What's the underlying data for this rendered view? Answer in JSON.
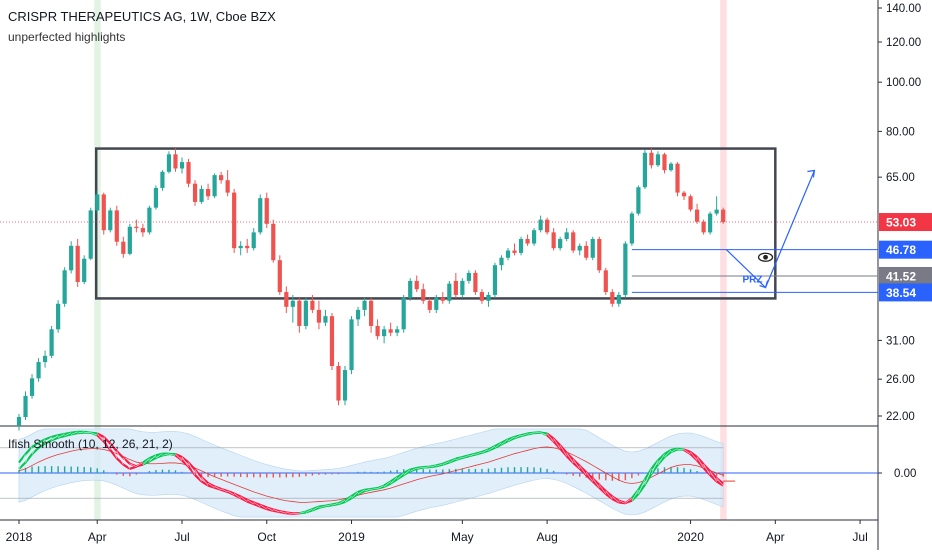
{
  "header": {
    "title": "CRISPR THERAPEUTICS AG, 1W, Cboe BZX",
    "subtitle": "unperfected highlights"
  },
  "indicator": {
    "label": "Ifish Smooth (10, 12, 26, 21, 2)",
    "zero_label": "0.00"
  },
  "colors": {
    "up": "#26a69a",
    "down": "#ef5350",
    "box": "#434651",
    "blue": "#2962ff",
    "price_tag": "#f23645",
    "grey_tag": "#787b86",
    "band_fill": "#d6e9f8",
    "green_line": "#00c853",
    "red_line": "#ff1744"
  },
  "chart_data": [
    {
      "type": "candlestick",
      "title": "CRISPR THERAPEUTICS AG, 1W, Cboe BZX",
      "y_scale": "log",
      "y_ticks": [
        "140.00",
        "120.00",
        "100.00",
        "80.00",
        "65.00",
        "53.03",
        "46.78",
        "41.52",
        "38.54",
        "31.00",
        "26.00",
        "22.00"
      ],
      "y_tick_values": [
        140,
        120,
        100,
        80,
        65,
        31,
        26,
        22
      ],
      "x_ticks": [
        "2018",
        "Apr",
        "Jul",
        "Oct",
        "2019",
        "May",
        "Aug",
        "2020",
        "Apr",
        "Jul"
      ],
      "x_tick_weeks": [
        0,
        12,
        25,
        38,
        51,
        68,
        81,
        103,
        116,
        129
      ],
      "x_start": "2018-01-01",
      "last_price": "53.03",
      "levels": [
        {
          "label": "46.78",
          "value": 46.78,
          "style": "blue"
        },
        {
          "label": "41.52",
          "value": 41.52,
          "style": "grey"
        },
        {
          "label": "38.54",
          "value": 38.54,
          "style": "blue"
        }
      ],
      "annotations": {
        "prz_label": "PRZ",
        "eye_marker": "eye-icon",
        "range_box": {
          "from_week": 10,
          "to_week": 116,
          "top": 74,
          "bottom": 37.5
        }
      },
      "highlights": [
        {
          "week": 12,
          "color": "green"
        },
        {
          "week": 108,
          "color": "red"
        }
      ],
      "candles": [
        [
          21.1,
          22.2,
          20.6,
          21.9
        ],
        [
          21.9,
          24.6,
          21.6,
          24.1
        ],
        [
          24.1,
          26.6,
          23.8,
          26.1
        ],
        [
          26.1,
          28.6,
          25.7,
          28.1
        ],
        [
          28.1,
          29.6,
          27.4,
          28.9
        ],
        [
          28.9,
          33.1,
          28.6,
          32.6
        ],
        [
          32.6,
          37.2,
          32.1,
          36.6
        ],
        [
          36.6,
          43.2,
          36.1,
          42.6
        ],
        [
          42.6,
          48.6,
          42.0,
          47.6
        ],
        [
          47.6,
          49.1,
          39.5,
          40.4
        ],
        [
          40.4,
          45.6,
          40.0,
          44.9
        ],
        [
          44.9,
          56.6,
          44.6,
          55.9
        ],
        [
          55.9,
          61.2,
          55.1,
          60.1
        ],
        [
          60.1,
          60.6,
          50.1,
          51.1
        ],
        [
          51.1,
          56.6,
          50.6,
          55.9
        ],
        [
          55.9,
          57.1,
          47.6,
          48.5
        ],
        [
          48.5,
          49.6,
          45.1,
          45.9
        ],
        [
          45.9,
          52.6,
          45.6,
          51.9
        ],
        [
          51.9,
          53.6,
          50.6,
          51.6
        ],
        [
          51.6,
          52.6,
          49.6,
          50.6
        ],
        [
          50.6,
          57.1,
          50.1,
          56.6
        ],
        [
          56.6,
          62.6,
          56.1,
          61.9
        ],
        [
          61.9,
          67.1,
          61.1,
          66.6
        ],
        [
          66.6,
          73.1,
          66.1,
          72.1
        ],
        [
          72.1,
          74.1,
          66.6,
          67.6
        ],
        [
          67.6,
          71.1,
          66.1,
          69.6
        ],
        [
          69.6,
          70.6,
          62.1,
          63.1
        ],
        [
          63.1,
          64.1,
          57.1,
          58.1
        ],
        [
          58.1,
          62.6,
          57.6,
          61.6
        ],
        [
          61.6,
          63.1,
          58.6,
          59.6
        ],
        [
          59.6,
          66.1,
          59.1,
          65.6
        ],
        [
          65.6,
          66.6,
          63.1,
          64.1
        ],
        [
          64.1,
          67.1,
          59.6,
          60.6
        ],
        [
          60.6,
          61.6,
          46.1,
          47.1
        ],
        [
          47.1,
          48.6,
          45.6,
          47.6
        ],
        [
          47.6,
          49.1,
          46.1,
          47.1
        ],
        [
          47.1,
          51.6,
          46.6,
          50.6
        ],
        [
          50.6,
          60.1,
          50.1,
          59.1
        ],
        [
          59.1,
          60.6,
          51.6,
          52.6
        ],
        [
          52.6,
          53.6,
          44.1,
          44.6
        ],
        [
          44.6,
          45.6,
          38.1,
          38.6
        ],
        [
          38.6,
          39.6,
          35.1,
          36.1
        ],
        [
          36.1,
          38.1,
          33.6,
          37.1
        ],
        [
          37.1,
          37.6,
          32.1,
          33.1
        ],
        [
          33.1,
          37.6,
          32.6,
          37.1
        ],
        [
          37.1,
          38.1,
          35.1,
          35.6
        ],
        [
          35.6,
          37.1,
          32.6,
          33.6
        ],
        [
          33.6,
          35.6,
          33.1,
          34.6
        ],
        [
          34.6,
          35.1,
          27.1,
          27.6
        ],
        [
          27.6,
          28.1,
          23.1,
          23.6
        ],
        [
          23.6,
          27.6,
          23.1,
          27.1
        ],
        [
          27.1,
          34.6,
          26.6,
          34.1
        ],
        [
          34.1,
          36.1,
          33.1,
          35.6
        ],
        [
          35.6,
          37.6,
          34.6,
          37.1
        ],
        [
          37.1,
          37.6,
          32.1,
          33.1
        ],
        [
          33.1,
          34.1,
          31.1,
          31.6
        ],
        [
          31.6,
          33.1,
          30.6,
          32.6
        ],
        [
          32.6,
          33.6,
          31.6,
          32.1
        ],
        [
          32.1,
          33.1,
          31.6,
          32.6
        ],
        [
          32.6,
          38.1,
          32.1,
          37.6
        ],
        [
          37.6,
          41.1,
          37.1,
          40.6
        ],
        [
          40.6,
          41.6,
          38.6,
          39.1
        ],
        [
          39.1,
          40.1,
          36.6,
          37.1
        ],
        [
          37.1,
          37.6,
          35.1,
          35.6
        ],
        [
          35.6,
          38.1,
          35.1,
          37.6
        ],
        [
          37.6,
          38.6,
          36.6,
          37.1
        ],
        [
          37.1,
          40.6,
          36.6,
          40.1
        ],
        [
          40.6,
          42.1,
          37.6,
          38.1
        ],
        [
          38.1,
          41.1,
          37.6,
          40.6
        ],
        [
          40.6,
          42.6,
          40.1,
          42.1
        ],
        [
          42.1,
          42.6,
          38.1,
          38.6
        ],
        [
          38.6,
          39.1,
          36.6,
          37.1
        ],
        [
          37.1,
          38.6,
          36.1,
          38.1
        ],
        [
          38.1,
          44.1,
          37.6,
          43.6
        ],
        [
          43.6,
          45.6,
          42.6,
          45.1
        ],
        [
          45.1,
          47.1,
          44.6,
          46.6
        ],
        [
          46.6,
          48.1,
          45.6,
          46.1
        ],
        [
          46.1,
          49.6,
          45.6,
          49.1
        ],
        [
          49.1,
          50.1,
          47.6,
          48.1
        ],
        [
          48.1,
          51.6,
          47.6,
          51.1
        ],
        [
          51.1,
          54.6,
          50.6,
          53.6
        ],
        [
          53.6,
          54.1,
          50.1,
          50.6
        ],
        [
          50.6,
          51.6,
          46.6,
          47.1
        ],
        [
          47.1,
          49.6,
          46.6,
          49.1
        ],
        [
          49.1,
          51.6,
          48.6,
          50.6
        ],
        [
          50.6,
          51.1,
          46.1,
          46.6
        ],
        [
          46.6,
          48.1,
          45.6,
          47.6
        ],
        [
          47.6,
          48.6,
          44.6,
          45.1
        ],
        [
          45.1,
          49.6,
          44.6,
          49.1
        ],
        [
          49.1,
          49.6,
          42.1,
          42.6
        ],
        [
          42.6,
          43.1,
          38.1,
          38.6
        ],
        [
          38.6,
          39.1,
          36.1,
          36.6
        ],
        [
          36.6,
          38.6,
          36.1,
          38.1
        ],
        [
          38.1,
          48.6,
          37.6,
          48.1
        ],
        [
          48.1,
          55.6,
          47.6,
          55.1
        ],
        [
          55.1,
          62.6,
          54.6,
          62.1
        ],
        [
          62.1,
          73.6,
          61.6,
          72.6
        ],
        [
          72.6,
          74.1,
          67.6,
          68.6
        ],
        [
          68.6,
          73.1,
          68.1,
          72.1
        ],
        [
          72.1,
          72.6,
          66.1,
          67.1
        ],
        [
          67.1,
          69.6,
          66.6,
          69.1
        ],
        [
          69.1,
          69.6,
          59.6,
          60.6
        ],
        [
          60.6,
          61.1,
          58.6,
          59.6
        ],
        [
          59.6,
          60.1,
          55.6,
          56.1
        ],
        [
          56.1,
          57.6,
          52.6,
          53.1
        ],
        [
          53.1,
          53.6,
          50.1,
          50.6
        ],
        [
          50.6,
          55.6,
          50.1,
          55.1
        ],
        [
          55.1,
          59.6,
          54.6,
          56.1
        ],
        [
          56.1,
          56.6,
          52.6,
          53.03
        ]
      ]
    },
    {
      "type": "line",
      "title": "Ifish Smooth (10, 12, 26, 21, 2)",
      "ylim": [
        -1,
        1
      ],
      "zero_label": "0.00",
      "series": [
        {
          "name": "fast",
          "values": [
            0.25,
            0.45,
            0.62,
            0.72,
            0.8,
            0.86,
            0.9,
            0.93,
            0.96,
            0.98,
            0.98,
            0.96,
            0.9,
            0.75,
            0.55,
            0.35,
            0.2,
            0.1,
            0.15,
            0.25,
            0.35,
            0.42,
            0.46,
            0.46,
            0.42,
            0.3,
            0.15,
            -0.05,
            -0.2,
            -0.3,
            -0.35,
            -0.4,
            -0.45,
            -0.52,
            -0.6,
            -0.68,
            -0.74,
            -0.8,
            -0.86,
            -0.9,
            -0.93,
            -0.96,
            -0.97,
            -0.96,
            -0.92,
            -0.86,
            -0.8,
            -0.78,
            -0.75,
            -0.72,
            -0.65,
            -0.55,
            -0.45,
            -0.4,
            -0.38,
            -0.36,
            -0.3,
            -0.2,
            -0.1,
            0.0,
            0.08,
            0.12,
            0.14,
            0.15,
            0.18,
            0.22,
            0.28,
            0.34,
            0.38,
            0.42,
            0.46,
            0.5,
            0.56,
            0.64,
            0.72,
            0.8,
            0.86,
            0.9,
            0.94,
            0.96,
            0.97,
            0.9,
            0.75,
            0.58,
            0.4,
            0.24,
            0.1,
            -0.05,
            -0.2,
            -0.35,
            -0.5,
            -0.62,
            -0.7,
            -0.72,
            -0.6,
            -0.4,
            -0.15,
            0.1,
            0.3,
            0.45,
            0.55,
            0.58,
            0.55,
            0.45,
            0.3,
            0.12,
            -0.05,
            -0.2,
            -0.3
          ]
        },
        {
          "name": "slow",
          "values": [
            0.1,
            0.25,
            0.45,
            0.6,
            0.7,
            0.78,
            0.84,
            0.88,
            0.92,
            0.95,
            0.96,
            0.96,
            0.94,
            0.86,
            0.7,
            0.52,
            0.36,
            0.22,
            0.16,
            0.2,
            0.28,
            0.36,
            0.42,
            0.45,
            0.45,
            0.38,
            0.25,
            0.08,
            -0.1,
            -0.24,
            -0.32,
            -0.38,
            -0.43,
            -0.49,
            -0.56,
            -0.64,
            -0.7,
            -0.76,
            -0.82,
            -0.87,
            -0.91,
            -0.94,
            -0.96,
            -0.96,
            -0.94,
            -0.89,
            -0.83,
            -0.79,
            -0.77,
            -0.74,
            -0.69,
            -0.6,
            -0.5,
            -0.43,
            -0.39,
            -0.37,
            -0.33,
            -0.25,
            -0.15,
            -0.05,
            0.04,
            0.1,
            0.13,
            0.14,
            0.16,
            0.2,
            0.25,
            0.31,
            0.36,
            0.4,
            0.44,
            0.48,
            0.53,
            0.6,
            0.68,
            0.76,
            0.83,
            0.88,
            0.92,
            0.95,
            0.96,
            0.94,
            0.82,
            0.66,
            0.48,
            0.32,
            0.17,
            0.02,
            -0.13,
            -0.28,
            -0.43,
            -0.56,
            -0.66,
            -0.71,
            -0.66,
            -0.5,
            -0.28,
            -0.02,
            0.2,
            0.38,
            0.5,
            0.56,
            0.56,
            0.5,
            0.38,
            0.21,
            0.04,
            -0.12,
            -0.25
          ]
        },
        {
          "name": "signal",
          "values": [
            0.05,
            0.1,
            0.18,
            0.26,
            0.33,
            0.39,
            0.44,
            0.48,
            0.52,
            0.55,
            0.57,
            0.58,
            0.58,
            0.56,
            0.52,
            0.46,
            0.39,
            0.32,
            0.26,
            0.23,
            0.22,
            0.22,
            0.23,
            0.24,
            0.24,
            0.22,
            0.18,
            0.12,
            0.05,
            -0.02,
            -0.09,
            -0.15,
            -0.21,
            -0.27,
            -0.33,
            -0.39,
            -0.45,
            -0.5,
            -0.55,
            -0.59,
            -0.63,
            -0.66,
            -0.68,
            -0.7,
            -0.7,
            -0.69,
            -0.68,
            -0.67,
            -0.66,
            -0.64,
            -0.61,
            -0.57,
            -0.53,
            -0.49,
            -0.46,
            -0.43,
            -0.4,
            -0.36,
            -0.31,
            -0.26,
            -0.21,
            -0.16,
            -0.12,
            -0.08,
            -0.05,
            -0.02,
            0.02,
            0.06,
            0.1,
            0.14,
            0.18,
            0.22,
            0.26,
            0.31,
            0.36,
            0.41,
            0.46,
            0.5,
            0.54,
            0.58,
            0.61,
            0.62,
            0.6,
            0.56,
            0.5,
            0.43,
            0.35,
            0.27,
            0.18,
            0.09,
            0.0,
            -0.09,
            -0.17,
            -0.23,
            -0.25,
            -0.23,
            -0.18,
            -0.1,
            -0.02,
            0.06,
            0.13,
            0.18,
            0.2,
            0.2,
            0.17,
            0.12,
            0.06,
            0.0,
            -0.05
          ]
        }
      ]
    }
  ]
}
